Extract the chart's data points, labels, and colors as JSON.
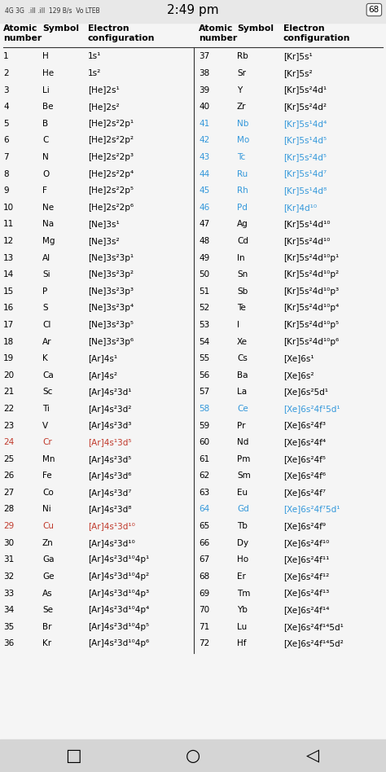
{
  "bg_color": "#f5f5f5",
  "status_bar_color": "#e8e8e8",
  "nav_bar_color": "#d5d5d5",
  "status_text_left": "4G 3G\n.ill .ill 129 B/s Vo\nLTEB",
  "status_time": "2:49 pm",
  "status_battery": "68",
  "col_header": [
    "Atomic\nnumber",
    "Symbol",
    "Electron\nconfiguration",
    "Atomic\nnumber",
    "Symbol",
    "Electron\nconfiguration"
  ],
  "rows": [
    [
      1,
      "H",
      "1s¹",
      37,
      "Rb",
      "[Kr]5s¹"
    ],
    [
      2,
      "He",
      "1s²",
      38,
      "Sr",
      "[Kr]5s²"
    ],
    [
      3,
      "Li",
      "[He]2s¹",
      39,
      "Y",
      "[Kr]5s²4d¹"
    ],
    [
      4,
      "Be",
      "[He]2s²",
      40,
      "Zr",
      "[Kr]5s²4d²"
    ],
    [
      5,
      "B",
      "[He]2s²2p¹",
      41,
      "Nb",
      "[Kr]5s¹4d⁴"
    ],
    [
      6,
      "C",
      "[He]2s²2p²",
      42,
      "Mo",
      "[Kr]5s¹4d⁵"
    ],
    [
      7,
      "N",
      "[He]2s²2p³",
      43,
      "Tc",
      "[Kr]5s²4d⁵"
    ],
    [
      8,
      "O",
      "[He]2s²2p⁴",
      44,
      "Ru",
      "[Kr]5s¹4d⁷"
    ],
    [
      9,
      "F",
      "[He]2s²2p⁵",
      45,
      "Rh",
      "[Kr]5s¹4d⁸"
    ],
    [
      10,
      "Ne",
      "[He]2s²2p⁶",
      46,
      "Pd",
      "[Kr]4d¹⁰"
    ],
    [
      11,
      "Na",
      "[Ne]3s¹",
      47,
      "Ag",
      "[Kr]5s¹4d¹⁰"
    ],
    [
      12,
      "Mg",
      "[Ne]3s²",
      48,
      "Cd",
      "[Kr]5s²4d¹⁰"
    ],
    [
      13,
      "Al",
      "[Ne]3s²3p¹",
      49,
      "In",
      "[Kr]5s²4d¹⁰p¹"
    ],
    [
      14,
      "Si",
      "[Ne]3s²3p²",
      50,
      "Sn",
      "[Kr]5s²4d¹⁰p²"
    ],
    [
      15,
      "P",
      "[Ne]3s²3p³",
      51,
      "Sb",
      "[Kr]5s²4d¹⁰p³"
    ],
    [
      16,
      "S",
      "[Ne]3s²3p⁴",
      52,
      "Te",
      "[Kr]5s²4d¹⁰p⁴"
    ],
    [
      17,
      "Cl",
      "[Ne]3s²3p⁵",
      53,
      "I",
      "[Kr]5s²4d¹⁰p⁵"
    ],
    [
      18,
      "Ar",
      "[Ne]3s²3p⁶",
      54,
      "Xe",
      "[Kr]5s²4d¹⁰p⁶"
    ],
    [
      19,
      "K",
      "[Ar]4s¹",
      55,
      "Cs",
      "[Xe]6s¹"
    ],
    [
      20,
      "Ca",
      "[Ar]4s²",
      56,
      "Ba",
      "[Xe]6s²"
    ],
    [
      21,
      "Sc",
      "[Ar]4s²3d¹",
      57,
      "La",
      "[Xe]6s²5d¹"
    ],
    [
      22,
      "Ti",
      "[Ar]4s²3d²",
      58,
      "Ce",
      "[Xe]6s²4f¹5d¹"
    ],
    [
      23,
      "V",
      "[Ar]4s²3d³",
      59,
      "Pr",
      "[Xe]6s²4f³"
    ],
    [
      24,
      "Cr",
      "[Ar]4s¹3d⁵",
      60,
      "Nd",
      "[Xe]6s²4f⁴"
    ],
    [
      25,
      "Mn",
      "[Ar]4s²3d⁵",
      61,
      "Pm",
      "[Xe]6s²4f⁵"
    ],
    [
      26,
      "Fe",
      "[Ar]4s²3d⁶",
      62,
      "Sm",
      "[Xe]6s²4f⁶"
    ],
    [
      27,
      "Co",
      "[Ar]4s²3d⁷",
      63,
      "Eu",
      "[Xe]6s²4f⁷"
    ],
    [
      28,
      "Ni",
      "[Ar]4s²3d⁸",
      64,
      "Gd",
      "[Xe]6s²4f⁷5d¹"
    ],
    [
      29,
      "Cu",
      "[Ar]4s¹3d¹⁰",
      65,
      "Tb",
      "[Xe]6s²4f⁹"
    ],
    [
      30,
      "Zn",
      "[Ar]4s²3d¹⁰",
      66,
      "Dy",
      "[Xe]6s²4f¹⁰"
    ],
    [
      31,
      "Ga",
      "[Ar]4s²3d¹⁰4p¹",
      67,
      "Ho",
      "[Xe]6s²4f¹¹"
    ],
    [
      32,
      "Ge",
      "[Ar]4s²3d¹⁰4p²",
      68,
      "Er",
      "[Xe]6s²4f¹²"
    ],
    [
      33,
      "As",
      "[Ar]4s²3d¹⁰4p³",
      69,
      "Tm",
      "[Xe]6s²4f¹³"
    ],
    [
      34,
      "Se",
      "[Ar]4s²3d¹⁰4p⁴",
      70,
      "Yb",
      "[Xe]6s²4f¹⁴"
    ],
    [
      35,
      "Br",
      "[Ar]4s²3d¹⁰4p⁵",
      71,
      "Lu",
      "[Xe]6s²4f¹⁴5d¹"
    ],
    [
      36,
      "Kr",
      "[Ar]4s²3d¹⁰4p⁶",
      72,
      "Hf",
      "[Xe]6s²4f¹⁴5d²"
    ]
  ],
  "special": {
    "24": "#c0392b",
    "29": "#c0392b",
    "41": "#3498db",
    "42": "#3498db",
    "43": "#3498db",
    "44": "#3498db",
    "45": "#3498db",
    "46": "#3498db",
    "58": "#3498db",
    "64": "#3498db"
  }
}
